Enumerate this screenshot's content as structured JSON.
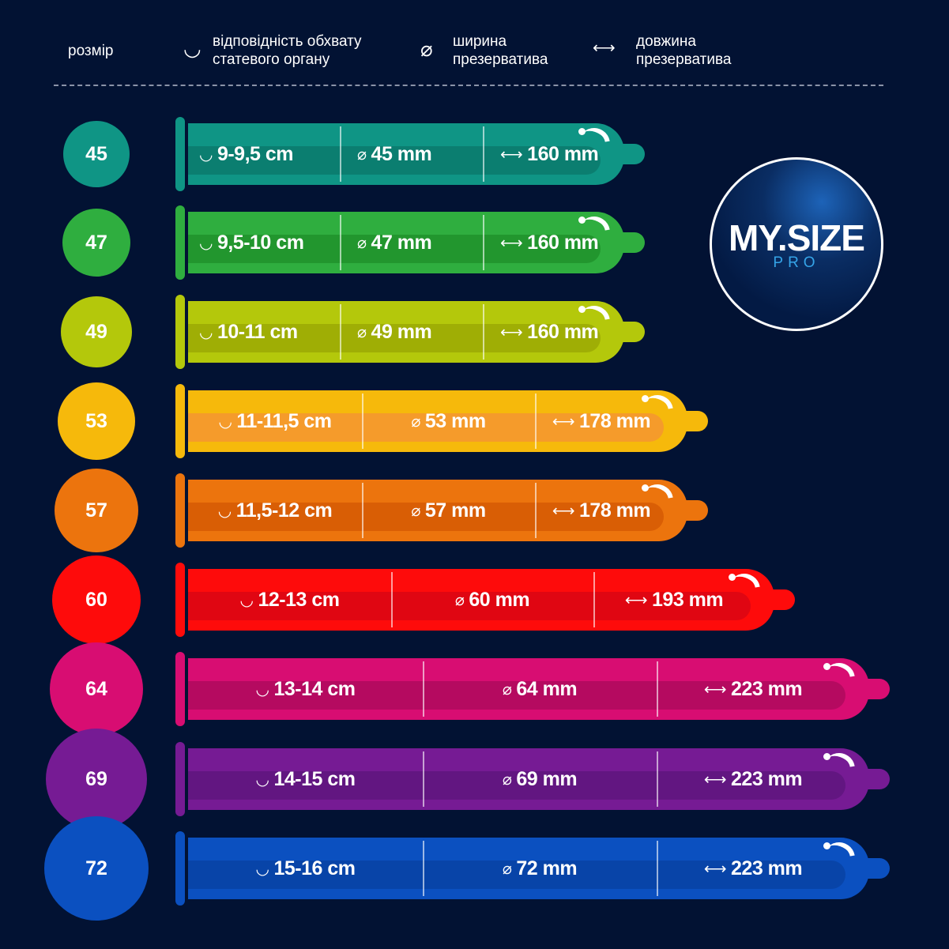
{
  "header": {
    "size_label": "розмір",
    "girth_label_1": "відповідність обхвату",
    "girth_label_2": "статевого органу",
    "width_label_1": "ширина",
    "width_label_2": "презерватива",
    "length_label_1": "довжина",
    "length_label_2": "презерватива",
    "icons": {
      "girth": "circle-arrow-icon",
      "width": "diameter-icon",
      "length": "double-arrow-icon"
    }
  },
  "logo": {
    "main": "MY.SIZE",
    "sub": "PRO"
  },
  "symbols": {
    "girth": "◡",
    "width": "⌀",
    "length": "⟷"
  },
  "sizes": [
    {
      "size": "45",
      "girth": "9-9,5 cm",
      "width": "45 mm",
      "length": "160 mm",
      "color": "#0f9585",
      "band": "#0b7e70"
    },
    {
      "size": "47",
      "girth": "9,5-10 cm",
      "width": "47 mm",
      "length": "160 mm",
      "color": "#2fae3f",
      "band": "#22962e"
    },
    {
      "size": "49",
      "girth": "10-11 cm",
      "width": "49 mm",
      "length": "160 mm",
      "color": "#b4c80b",
      "band": "#9fae05"
    },
    {
      "size": "53",
      "girth": "11-11,5 cm",
      "width": "53 mm",
      "length": "178 mm",
      "color": "#f6b90b",
      "band": "#f59b2b"
    },
    {
      "size": "57",
      "girth": "11,5-12 cm",
      "width": "57 mm",
      "length": "178 mm",
      "color": "#ec740d",
      "band": "#d95e05"
    },
    {
      "size": "60",
      "girth": "12-13 cm",
      "width": "60 mm",
      "length": "193 mm",
      "color": "#fe0b0b",
      "band": "#e00612"
    },
    {
      "size": "64",
      "girth": "13-14 cm",
      "width": "64 mm",
      "length": "223 mm",
      "color": "#d80d72",
      "band": "#b50a60"
    },
    {
      "size": "69",
      "girth": "14-15 cm",
      "width": "69 mm",
      "length": "223 mm",
      "color": "#761b94",
      "band": "#621681"
    },
    {
      "size": "72",
      "girth": "15-16 cm",
      "width": "72 mm",
      "length": "223 mm",
      "color": "#0b50c0",
      "band": "#0844a8"
    }
  ]
}
